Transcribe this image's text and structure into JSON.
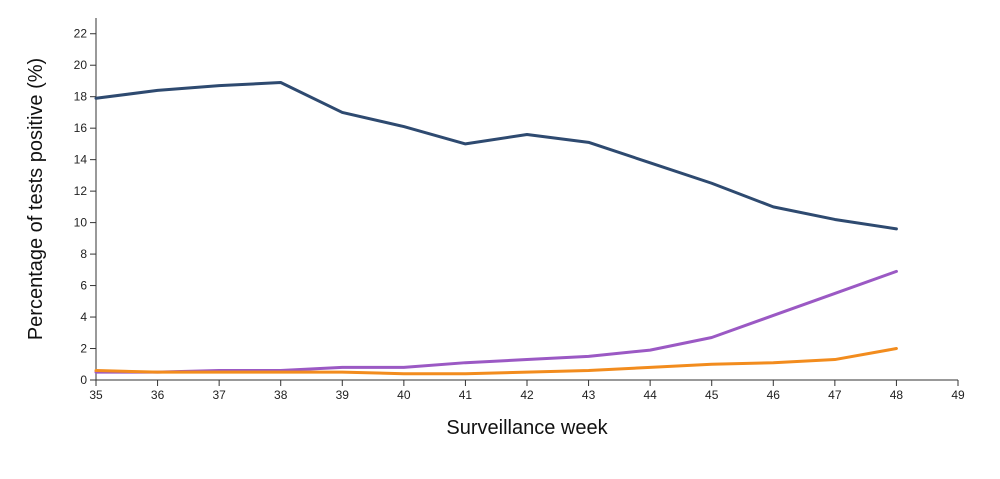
{
  "chart_data": {
    "type": "line",
    "title": "",
    "xlabel": "Surveillance week",
    "ylabel": "Percentage of tests positive (%)",
    "xlim": [
      35,
      49
    ],
    "ylim": [
      0,
      23
    ],
    "x_ticks": [
      35,
      36,
      37,
      38,
      39,
      40,
      41,
      42,
      43,
      44,
      45,
      46,
      47,
      48,
      49
    ],
    "y_ticks": [
      0,
      2,
      4,
      6,
      8,
      10,
      12,
      14,
      16,
      18,
      20,
      22
    ],
    "grid": false,
    "legend": "none",
    "x": [
      35,
      36,
      37,
      38,
      39,
      40,
      41,
      42,
      43,
      44,
      45,
      46,
      47,
      48
    ],
    "series": [
      {
        "color": "#2e4a70",
        "values": [
          17.9,
          18.4,
          18.7,
          18.9,
          17.0,
          16.1,
          15.0,
          15.6,
          15.1,
          13.8,
          12.5,
          11.0,
          10.2,
          9.6
        ]
      },
      {
        "color": "#9b59c4",
        "values": [
          0.5,
          0.5,
          0.6,
          0.6,
          0.8,
          0.8,
          1.1,
          1.3,
          1.5,
          1.9,
          2.7,
          4.1,
          5.5,
          6.9
        ]
      },
      {
        "color": "#f28c1e",
        "values": [
          0.6,
          0.5,
          0.5,
          0.5,
          0.5,
          0.4,
          0.4,
          0.5,
          0.6,
          0.8,
          1.0,
          1.1,
          1.3,
          2.0
        ]
      }
    ]
  }
}
